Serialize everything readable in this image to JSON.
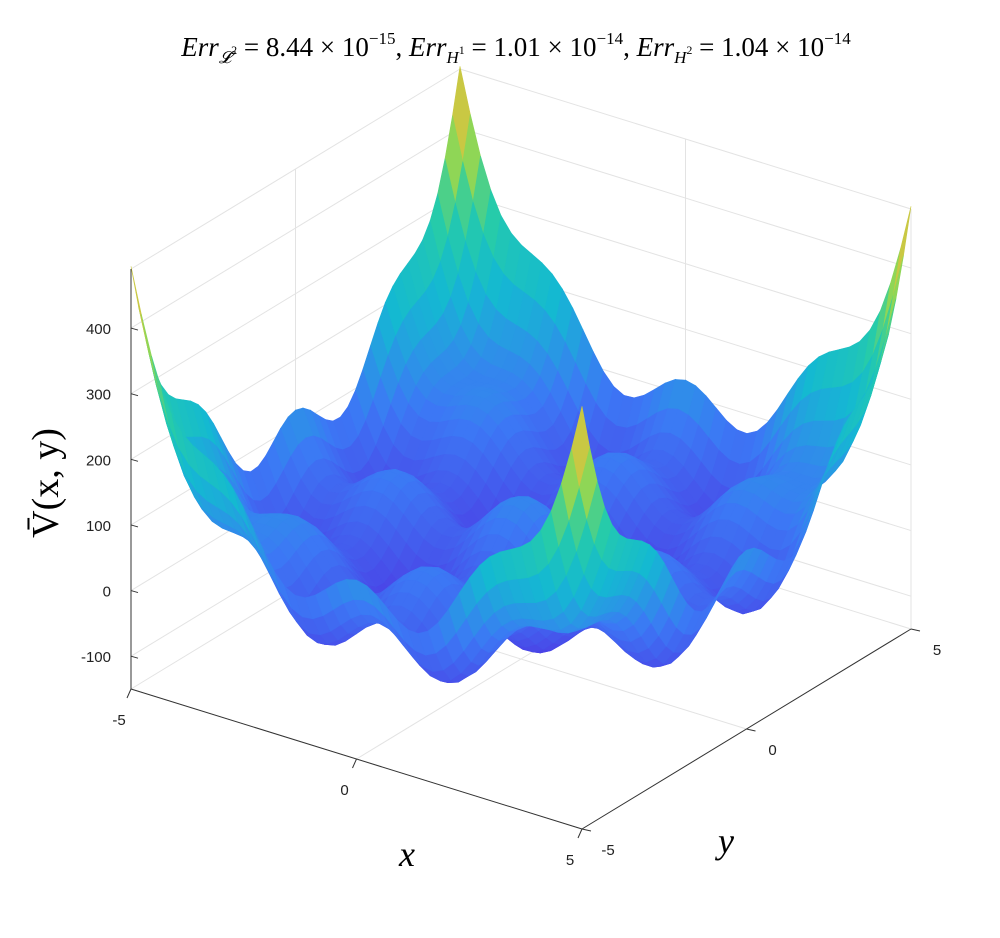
{
  "chart_data": {
    "type": "surface3d",
    "title": {
      "l2_value": "8.44",
      "l2_exp": "−15",
      "h1_value": "1.01",
      "h1_exp": "−14",
      "h2_value": "1.04",
      "h2_exp": "−14"
    },
    "xlabel": "x",
    "ylabel": "y",
    "zlabel": "V̄(x, y)",
    "x_ticks": [
      "-5",
      "0",
      "5"
    ],
    "y_ticks": [
      "-5",
      "0",
      "5"
    ],
    "z_ticks": [
      "-100",
      "0",
      "100",
      "200",
      "300",
      "400"
    ],
    "xlim": [
      -5,
      5
    ],
    "ylim": [
      -5,
      5
    ],
    "zlim": [
      -150,
      490
    ],
    "grid": true,
    "colormap": "turbo"
  }
}
